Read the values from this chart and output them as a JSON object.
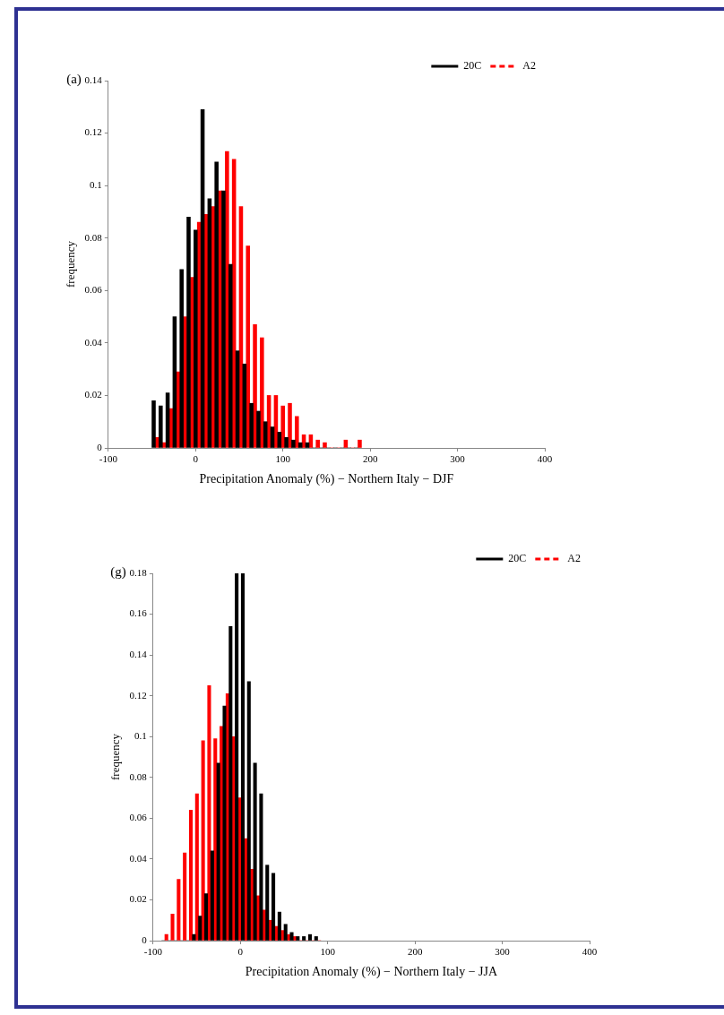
{
  "chart_data": [
    {
      "type": "histogram",
      "annotations": [
        "(a)"
      ],
      "xlabel": "Precipitation Anomaly (%) − Northern Italy − DJF",
      "ylabel": "frequency",
      "bins": [
        -50,
        -42,
        -34,
        -26,
        -18,
        -10,
        -2,
        6,
        14,
        22,
        30,
        38,
        46,
        54,
        62,
        70,
        78,
        86,
        94,
        102,
        110,
        118,
        126,
        134,
        142,
        150,
        158,
        166,
        174,
        182,
        190
      ],
      "series": [
        {
          "name": "20C",
          "color": "#000000",
          "line_style": "solid",
          "values": [
            0.018,
            0.016,
            0.021,
            0.05,
            0.068,
            0.088,
            0.083,
            0.129,
            0.095,
            0.109,
            0.098,
            0.07,
            0.037,
            0.032,
            0.017,
            0.014,
            0.01,
            0.008,
            0.006,
            0.004,
            0.003,
            0.002,
            0.002,
            0,
            0,
            0,
            0,
            0,
            0,
            0
          ]
        },
        {
          "name": "A2",
          "color": "#ff0000",
          "line_style": "dashed",
          "values": [
            0.004,
            0.002,
            0.015,
            0.029,
            0.05,
            0.065,
            0.086,
            0.089,
            0.092,
            0.098,
            0.113,
            0.11,
            0.092,
            0.077,
            0.047,
            0.042,
            0.02,
            0.02,
            0.016,
            0.017,
            0.012,
            0.005,
            0.005,
            0.003,
            0.002,
            0,
            0,
            0.003,
            0,
            0.003
          ]
        }
      ],
      "xlim": [
        -100,
        400
      ],
      "xticks": [
        -100,
        0,
        100,
        200,
        300,
        400
      ],
      "ylim": [
        0,
        0.14
      ],
      "yticks": [
        0,
        0.02,
        0.04,
        0.06,
        0.08,
        0.1,
        0.12,
        0.14
      ],
      "legend": "top right"
    },
    {
      "type": "histogram",
      "annotations": [
        "(g)"
      ],
      "xlabel": "Precipitation Anomaly (%) − Northern Italy − JJA",
      "ylabel": "frequency",
      "bins": [
        -90,
        -83,
        -76,
        -69,
        -62,
        -55,
        -48,
        -41,
        -34,
        -27,
        -20,
        -13,
        -6,
        1,
        8,
        15,
        22,
        29,
        36,
        43,
        50,
        57,
        64,
        71,
        78,
        85,
        92
      ],
      "series": [
        {
          "name": "20C",
          "color": "#000000",
          "line_style": "solid",
          "values": [
            0,
            0,
            0,
            0,
            0,
            0.003,
            0.012,
            0.023,
            0.044,
            0.087,
            0.115,
            0.154,
            0.18,
            0.18,
            0.127,
            0.087,
            0.072,
            0.037,
            0.033,
            0.014,
            0.008,
            0.004,
            0.002,
            0.002,
            0.003,
            0.002
          ]
        },
        {
          "name": "A2",
          "color": "#ff0000",
          "line_style": "dashed",
          "values": [
            0.003,
            0.013,
            0.03,
            0.043,
            0.064,
            0.072,
            0.098,
            0.125,
            0.099,
            0.105,
            0.121,
            0.1,
            0.07,
            0.05,
            0.035,
            0.022,
            0.015,
            0.01,
            0.007,
            0.005,
            0.003,
            0.002,
            0,
            0,
            0,
            0
          ]
        }
      ],
      "xlim": [
        -100,
        400
      ],
      "xticks": [
        -100,
        0,
        100,
        200,
        300,
        400
      ],
      "ylim": [
        0,
        0.18
      ],
      "yticks": [
        0,
        0.02,
        0.04,
        0.06,
        0.08,
        0.1,
        0.12,
        0.14,
        0.16,
        0.18
      ],
      "legend": "top right"
    }
  ]
}
